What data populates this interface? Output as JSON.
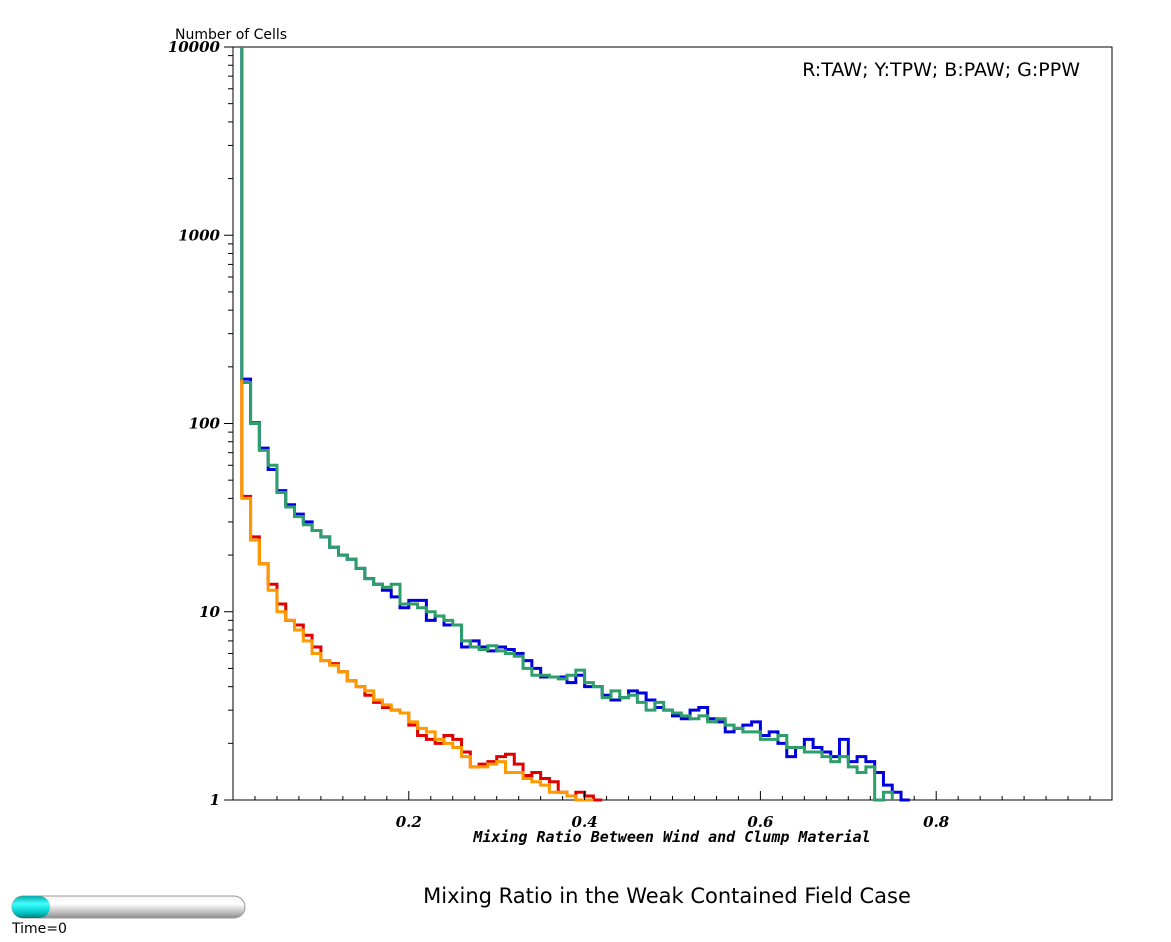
{
  "chart_data": {
    "type": "line",
    "title": "Mixing Ratio in the Weak Contained Field Case",
    "xlabel": "Mixing Ratio Between Wind and Clump Material",
    "ylabel": "Number of Cells",
    "legend_text": "R:TAW; Y:TPW; B:PAW; G:PPW",
    "legend_position": "top-right",
    "xlim": [
      0,
      1
    ],
    "ylim": [
      1,
      10000
    ],
    "yscale": "log",
    "grid": false,
    "x_ticks": [
      0.2,
      0.4,
      0.6,
      0.8
    ],
    "x_tick_labels": [
      "0.2",
      "0.4",
      "0.6",
      "0.8"
    ],
    "y_ticks": [
      1,
      10,
      100,
      1000,
      10000
    ],
    "y_tick_labels": [
      "1",
      "10",
      "100",
      "1000",
      "10000"
    ],
    "bin_width": 0.01,
    "bin_start": 0.01,
    "series": [
      {
        "name": "B:PAW",
        "color": "#0000dd",
        "spike": 10000,
        "values": [
          172,
          101,
          74,
          57,
          44,
          37,
          33,
          30,
          27,
          25,
          22,
          20,
          19,
          17,
          15,
          14,
          13,
          12,
          10.5,
          11.5,
          11.5,
          9,
          9.5,
          8.5,
          8.5,
          6.5,
          7,
          6.5,
          6.2,
          6.5,
          6.3,
          6,
          5.5,
          5,
          4.5,
          4.5,
          4.5,
          4.2,
          4.6,
          4,
          4,
          3.6,
          3.4,
          3.5,
          3.8,
          3.7,
          3.4,
          3.1,
          3,
          2.8,
          2.7,
          3,
          3.1,
          2.7,
          2.6,
          2.3,
          2.4,
          2.5,
          2.6,
          2.2,
          2.3,
          2,
          1.7,
          1.9,
          2.1,
          1.9,
          1.8,
          1.7,
          2.1,
          1.6,
          1.7,
          1.6,
          1.4,
          1.2,
          1.1,
          1
        ]
      },
      {
        "name": "G:PPW",
        "color": "#2e9e6a",
        "spike": 10000,
        "values": [
          165,
          100,
          72,
          60,
          43,
          36,
          32,
          29,
          27,
          25,
          22,
          20,
          19,
          17,
          15,
          14,
          13.5,
          14,
          11,
          11,
          10.5,
          10,
          9.5,
          9,
          8.5,
          7,
          6.5,
          6.3,
          6.6,
          6.2,
          6,
          5.8,
          5,
          4.6,
          4.6,
          4.5,
          4.4,
          4.6,
          4.9,
          4.2,
          4,
          3.5,
          3.8,
          3.5,
          3.6,
          3.3,
          3,
          3.3,
          3,
          2.9,
          2.8,
          2.7,
          2.8,
          2.6,
          2.7,
          2.5,
          2.4,
          2.3,
          2.3,
          2.1,
          2.1,
          2.2,
          1.9,
          1.9,
          1.8,
          1.8,
          1.7,
          1.6,
          1.7,
          1.5,
          1.4,
          1.5,
          1,
          1.1
        ]
      },
      {
        "name": "R:TAW",
        "color": "#e00000",
        "spike": 170,
        "values": [
          41,
          25,
          18,
          14,
          11,
          9,
          8.5,
          7.5,
          6.5,
          5.5,
          5.3,
          4.8,
          4.3,
          4,
          3.6,
          3.3,
          3.1,
          3,
          2.9,
          2.5,
          2.2,
          2.1,
          2,
          2.2,
          2.1,
          1.8,
          1.5,
          1.55,
          1.6,
          1.7,
          1.75,
          1.55,
          1.35,
          1.4,
          1.3,
          1.25,
          1.1,
          1.05,
          1.1,
          1.05,
          1
        ]
      },
      {
        "name": "Y:TPW",
        "color": "#ff9900",
        "spike": 170,
        "values": [
          40,
          24,
          18,
          13,
          10,
          9,
          8,
          7,
          6,
          5.5,
          5.2,
          4.8,
          4.3,
          4,
          3.8,
          3.4,
          3.2,
          3,
          2.9,
          2.6,
          2.4,
          2.3,
          2.1,
          2,
          1.9,
          1.7,
          1.5,
          1.5,
          1.55,
          1.6,
          1.4,
          1.4,
          1.3,
          1.25,
          1.2,
          1.1,
          1.1,
          1.05,
          1,
          1
        ]
      }
    ]
  },
  "time_label": "Time=0"
}
